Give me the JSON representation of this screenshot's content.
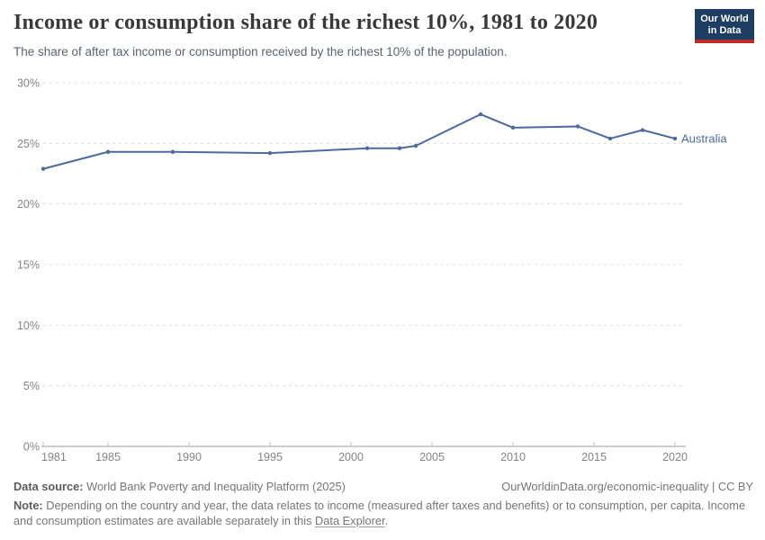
{
  "header": {
    "title": "Income or consumption share of the richest 10%, 1981 to 2020",
    "subtitle": "The share of after tax income or consumption received by the richest 10% of the population."
  },
  "logo": {
    "line1": "Our World",
    "line2": "in Data",
    "background_color": "#1d3d63",
    "accent_color": "#bb2d25"
  },
  "chart_data": {
    "type": "line",
    "title": "Income or consumption share of the richest 10%, 1981 to 2020",
    "xlabel": "",
    "ylabel": "",
    "xlim": [
      1981,
      2020
    ],
    "ylim": [
      0,
      30
    ],
    "grid": "dashed-horizontal",
    "legend_position": "end-of-line-label",
    "x_ticks": [
      {
        "value": 1981,
        "label": "1981"
      },
      {
        "value": 1985,
        "label": "1985"
      },
      {
        "value": 1990,
        "label": "1990"
      },
      {
        "value": 1995,
        "label": "1995"
      },
      {
        "value": 2000,
        "label": "2000"
      },
      {
        "value": 2005,
        "label": "2005"
      },
      {
        "value": 2010,
        "label": "2010"
      },
      {
        "value": 2015,
        "label": "2015"
      },
      {
        "value": 2020,
        "label": "2020"
      }
    ],
    "y_ticks": [
      {
        "value": 0,
        "label": "0%"
      },
      {
        "value": 5,
        "label": "5%"
      },
      {
        "value": 10,
        "label": "10%"
      },
      {
        "value": 15,
        "label": "15%"
      },
      {
        "value": 20,
        "label": "20%"
      },
      {
        "value": 25,
        "label": "25%"
      },
      {
        "value": 30,
        "label": "30%"
      }
    ],
    "series": [
      {
        "name": "Australia",
        "color": "#4c6a9c",
        "points": [
          [
            1981,
            22.9
          ],
          [
            1985,
            24.3
          ],
          [
            1989,
            24.3
          ],
          [
            1995,
            24.2
          ],
          [
            2001,
            24.6
          ],
          [
            2003,
            24.6
          ],
          [
            2004,
            24.8
          ],
          [
            2008,
            27.4
          ],
          [
            2010,
            26.3
          ],
          [
            2014,
            26.4
          ],
          [
            2016,
            25.4
          ],
          [
            2018,
            26.1
          ],
          [
            2020,
            25.4
          ]
        ]
      }
    ]
  },
  "footer": {
    "source_label": "Data source:",
    "source_value": "World Bank Poverty and Inequality Platform (2025)",
    "attribution": "OurWorldinData.org/economic-inequality | CC BY",
    "note_label": "Note:",
    "note_text": "Depending on the country and year, the data relates to income (measured after taxes and benefits) or to consumption, per capita. Income and consumption estimates are available separately in this",
    "note_link": "Data Explorer",
    "note_suffix": "."
  }
}
